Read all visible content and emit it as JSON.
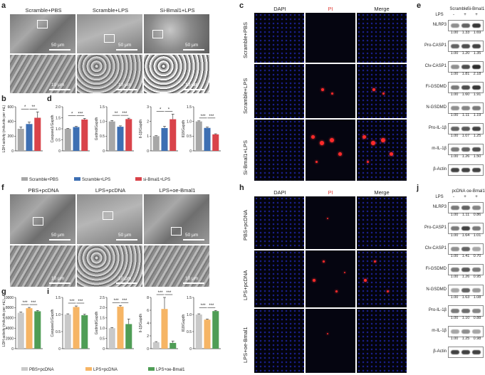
{
  "panels": {
    "a": "a",
    "b": "b",
    "c": "c",
    "d": "d",
    "e": "e",
    "f": "f",
    "g": "g",
    "h": "h",
    "i": "i",
    "j": "j"
  },
  "panel_a": {
    "columns": [
      "Scramble+PBS",
      "Scramble+LPS",
      "Si-Bmal1+LPS"
    ],
    "scale_top": "50 μm",
    "scale_bottom": "10 μm"
  },
  "panel_f": {
    "columns": [
      "PBS+pcDNA",
      "LPS+pcDNA",
      "LPS+oe-Bmal1"
    ],
    "scale_top": "50 μm",
    "scale_bottom": "10 μm"
  },
  "panel_c": {
    "columns": [
      "DAPI",
      "PI",
      "Merge"
    ],
    "rows": [
      "Scramble+PBS",
      "Scramble+LPS",
      "Si-Bmal1+LPS"
    ],
    "pi_color": "#e0403a"
  },
  "panel_h": {
    "columns": [
      "DAPI",
      "PI",
      "Merge"
    ],
    "rows": [
      "PBS+pcDNA",
      "LPS+pcDNA",
      "LPS+oe-Bmal1"
    ]
  },
  "panel_e": {
    "head_groups": [
      "Scramble",
      "Si-Bmal1"
    ],
    "lps_label": "LPS",
    "lps": [
      "-",
      "+",
      "+"
    ],
    "blots": [
      {
        "name": "NLRP3",
        "values": [
          "1.00",
          "1.33",
          "1.69"
        ]
      },
      {
        "name": "Pro-CASP1",
        "values": [
          "1.00",
          "1.20",
          "1.35"
        ]
      },
      {
        "name": "Clv-CASP1",
        "values": [
          "1.00",
          "1.81",
          "2.18"
        ]
      },
      {
        "name": "Fl-GSDMD",
        "values": [
          "1.00",
          "1.60",
          "1.91"
        ]
      },
      {
        "name": "N-GSDMD",
        "values": [
          "1.00",
          "1.11",
          "1.19"
        ]
      },
      {
        "name": "Pro-IL-1β",
        "values": [
          "1.00",
          "1.07",
          "1.25"
        ]
      },
      {
        "name": "m-IL-1β",
        "values": [
          "1.00",
          "1.26",
          "1.50"
        ]
      },
      {
        "name": "β-Actin",
        "values": []
      }
    ]
  },
  "panel_j": {
    "head_groups": [
      "pcDNA",
      "oe-Bmal1"
    ],
    "lps_label": "LPS",
    "lps": [
      "-",
      "+",
      "+"
    ],
    "blots": [
      {
        "name": "NLRP3",
        "values": [
          "1.00",
          "1.11",
          "0.86"
        ]
      },
      {
        "name": "Pro-CASP1",
        "values": [
          "1.00",
          "1.64",
          "1.01"
        ]
      },
      {
        "name": "Clv-CASP1",
        "values": [
          "1.00",
          "1.41",
          "0.70"
        ]
      },
      {
        "name": "Fl-GSDMD",
        "values": [
          "1.00",
          "1.26",
          "0.95"
        ]
      },
      {
        "name": "N-GSDMD",
        "values": [
          "1.00",
          "1.63",
          "1.08"
        ]
      },
      {
        "name": "Pro-IL-1β",
        "values": [
          "1.00",
          "1.10",
          "0.88"
        ]
      },
      {
        "name": "m-IL-1β",
        "values": [
          "1.00",
          "1.25",
          "0.98"
        ]
      },
      {
        "name": "β-Actin",
        "values": []
      }
    ]
  },
  "colors": {
    "scramble_pbs": "#a7a7a7",
    "scramble_lps": "#3d6fb3",
    "si_bmal1_lps": "#d9434a",
    "pbs_pcdna": "#c9c9c9",
    "lps_pcdna": "#f6b565",
    "lps_oe_bmal1": "#4f9d56"
  },
  "chart_data": [
    {
      "id": "b",
      "type": "bar",
      "ylabel": "LDH activity (miliunits per mL)",
      "categories": [
        "Scramble+PBS",
        "Scramble+LPS",
        "si-Bmal1+LPS"
      ],
      "values": [
        300,
        365,
        450
      ],
      "errors": [
        25,
        25,
        80
      ],
      "ylim": [
        0,
        600
      ],
      "yticks": [
        "0",
        "200",
        "400",
        "600"
      ],
      "sig": [
        "*",
        "**"
      ]
    },
    {
      "id": "d1",
      "type": "bar",
      "ylabel": "Caspase1/Gapdh",
      "categories": [
        "Scramble+PBS",
        "Scramble+LPS",
        "si-Bmal1+LPS"
      ],
      "values": [
        1.0,
        1.08,
        1.42
      ],
      "errors": [
        0.02,
        0.03,
        0.05
      ],
      "ylim": [
        0,
        2.0
      ],
      "yticks": [
        "0",
        "0.5",
        "1.0",
        "1.5",
        "2.0"
      ],
      "sig": [
        "*",
        "***"
      ]
    },
    {
      "id": "d2",
      "type": "bar",
      "ylabel": "Gsdmd/Gapdh",
      "categories": [
        "Scramble+PBS",
        "Scramble+LPS",
        "si-Bmal1+LPS"
      ],
      "values": [
        1.0,
        0.82,
        1.08
      ],
      "errors": [
        0.03,
        0.03,
        0.03
      ],
      "ylim": [
        0,
        1.5
      ],
      "yticks": [
        "0",
        "0.5",
        "1.0",
        "1.5"
      ],
      "sig": [
        "**",
        "***"
      ]
    },
    {
      "id": "d3",
      "type": "bar",
      "ylabel": "Il-1β/Gapdh",
      "categories": [
        "Scramble+PBS",
        "Scramble+LPS",
        "si-Bmal1+LPS"
      ],
      "values": [
        1.0,
        1.55,
        2.15
      ],
      "errors": [
        0.03,
        0.12,
        0.35
      ],
      "ylim": [
        0,
        3
      ],
      "yticks": [
        "0",
        "1",
        "2",
        "3"
      ],
      "sig": [
        "*",
        "*"
      ]
    },
    {
      "id": "d4",
      "type": "bar",
      "ylabel": "Il18/Gapdh",
      "categories": [
        "Scramble+PBS",
        "Scramble+LPS",
        "si-Bmal1+LPS"
      ],
      "values": [
        1.0,
        0.78,
        0.56
      ],
      "errors": [
        0.02,
        0.03,
        0.02
      ],
      "ylim": [
        0,
        1.5
      ],
      "yticks": [
        "0",
        "0.5",
        "1.0",
        "1.5"
      ],
      "sig": [
        "***",
        "***"
      ]
    },
    {
      "id": "g",
      "type": "bar",
      "ylabel": "LDH activity (miliunits per mL)",
      "categories": [
        "PBS+pcDNA",
        "LPS+pcDNA",
        "LPS+oe-Bmal1"
      ],
      "values": [
        7000,
        7900,
        7300
      ],
      "errors": [
        150,
        150,
        150
      ],
      "ylim": [
        0,
        10000
      ],
      "yticks": [
        "0",
        "2000",
        "4000",
        "6000",
        "8000",
        "10000"
      ],
      "sig": [
        "***",
        "***"
      ]
    },
    {
      "id": "i1",
      "type": "bar",
      "ylabel": "Caspase1/Gapdh",
      "categories": [
        "PBS+pcDNA",
        "LPS+pcDNA",
        "LPS+oe-Bmal1"
      ],
      "values": [
        1.0,
        1.22,
        0.98
      ],
      "errors": [
        0.02,
        0.03,
        0.03
      ],
      "ylim": [
        0,
        1.5
      ],
      "yticks": [
        "0",
        "0.5",
        "1.0",
        "1.5"
      ],
      "sig": [
        "***",
        "***"
      ]
    },
    {
      "id": "i2",
      "type": "bar",
      "ylabel": "Gsdmd/Gapdh",
      "categories": [
        "PBS+pcDNA",
        "LPS+pcDNA",
        "LPS+oe-Bmal1"
      ],
      "values": [
        1.0,
        2.05,
        1.2
      ],
      "errors": [
        0.03,
        0.06,
        0.25
      ],
      "ylim": [
        0,
        2.5
      ],
      "yticks": [
        "0",
        "0.5",
        "1.0",
        "1.5",
        "2.0",
        "2.5"
      ],
      "sig": [
        "***",
        "***"
      ]
    },
    {
      "id": "i3",
      "type": "bar",
      "ylabel": "Il-1β/Gapdh",
      "categories": [
        "PBS+pcDNA",
        "LPS+pcDNA",
        "LPS+oe-Bmal1"
      ],
      "values": [
        1.0,
        6.2,
        0.9
      ],
      "errors": [
        0.1,
        1.8,
        0.3
      ],
      "ylim": [
        0,
        8
      ],
      "yticks": [
        "0",
        "2",
        "4",
        "6",
        "8"
      ],
      "sig": [
        "***",
        "***"
      ]
    },
    {
      "id": "i4",
      "type": "bar",
      "ylabel": "Il18/Gapdh",
      "categories": [
        "PBS+pcDNA",
        "LPS+pcDNA",
        "LPS+oe-Bmal1"
      ],
      "values": [
        1.0,
        0.85,
        1.1
      ],
      "errors": [
        0.02,
        0.02,
        0.02
      ],
      "ylim": [
        0,
        1.5
      ],
      "yticks": [
        "0",
        "0.5",
        "1.0",
        "1.5"
      ],
      "sig": [
        "***",
        "***"
      ]
    }
  ],
  "legend_top": [
    "Scramble+PBS",
    "Scramble+LPS",
    "si-Bmal1+LPS"
  ],
  "legend_bottom": [
    "PBS+pcDNA",
    "LPS+pcDNA",
    "LPS+oe-Bmal1"
  ]
}
